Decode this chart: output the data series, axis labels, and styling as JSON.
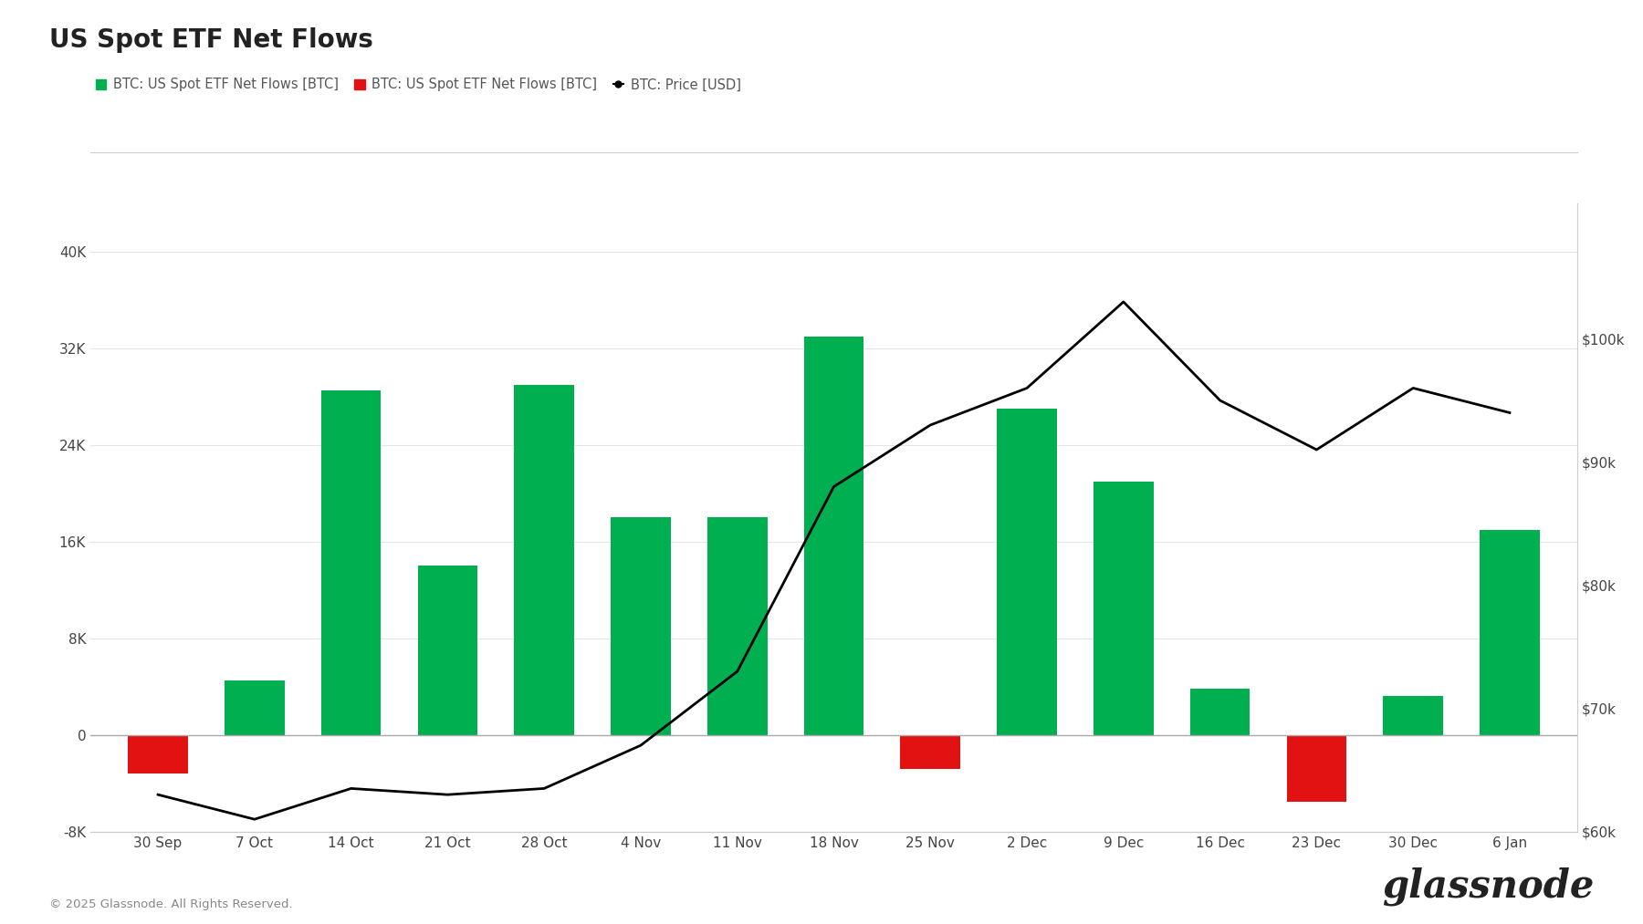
{
  "title": "US Spot ETF Net Flows",
  "categories": [
    "30 Sep",
    "7 Oct",
    "14 Oct",
    "21 Oct",
    "28 Oct",
    "4 Nov",
    "11 Nov",
    "18 Nov",
    "25 Nov",
    "2 Dec",
    "9 Dec",
    "16 Dec",
    "23 Dec",
    "30 Dec",
    "6 Jan"
  ],
  "bar_values": [
    -3200,
    4500,
    28500,
    14000,
    29000,
    18000,
    18000,
    33000,
    -2800,
    27000,
    21000,
    3800,
    -5500,
    3200,
    17000
  ],
  "bar_colors": [
    "#e31212",
    "#00b050",
    "#00b050",
    "#00b050",
    "#00b050",
    "#00b050",
    "#00b050",
    "#00b050",
    "#e31212",
    "#00b050",
    "#00b050",
    "#00b050",
    "#e31212",
    "#00b050",
    "#00b050"
  ],
  "price_x": [
    0,
    1,
    2,
    3,
    4,
    5,
    6,
    7,
    8,
    9,
    10,
    11,
    12,
    13,
    14
  ],
  "price_values": [
    63000,
    61000,
    63500,
    63000,
    63500,
    67000,
    73000,
    88000,
    93000,
    96000,
    103000,
    95000,
    91000,
    96000,
    94000
  ],
  "ylim_left": [
    -8000,
    44000
  ],
  "ylim_right": [
    60000,
    111000
  ],
  "yticks_left": [
    -8000,
    0,
    8000,
    16000,
    24000,
    32000,
    40000
  ],
  "ytick_labels_left": [
    "-8K",
    "0",
    "8K",
    "16K",
    "24K",
    "32K",
    "40K"
  ],
  "yticks_right": [
    60000,
    70000,
    80000,
    90000,
    100000
  ],
  "ytick_labels_right": [
    "$60k",
    "$70k",
    "$80k",
    "$90k",
    "$100k"
  ],
  "price_color": "#000000",
  "grid_color": "#e5e5e5",
  "background_color": "#ffffff",
  "title_fontsize": 20,
  "footer_text": "© 2025 Glassnode. All Rights Reserved.",
  "watermark_text": "glassnode"
}
